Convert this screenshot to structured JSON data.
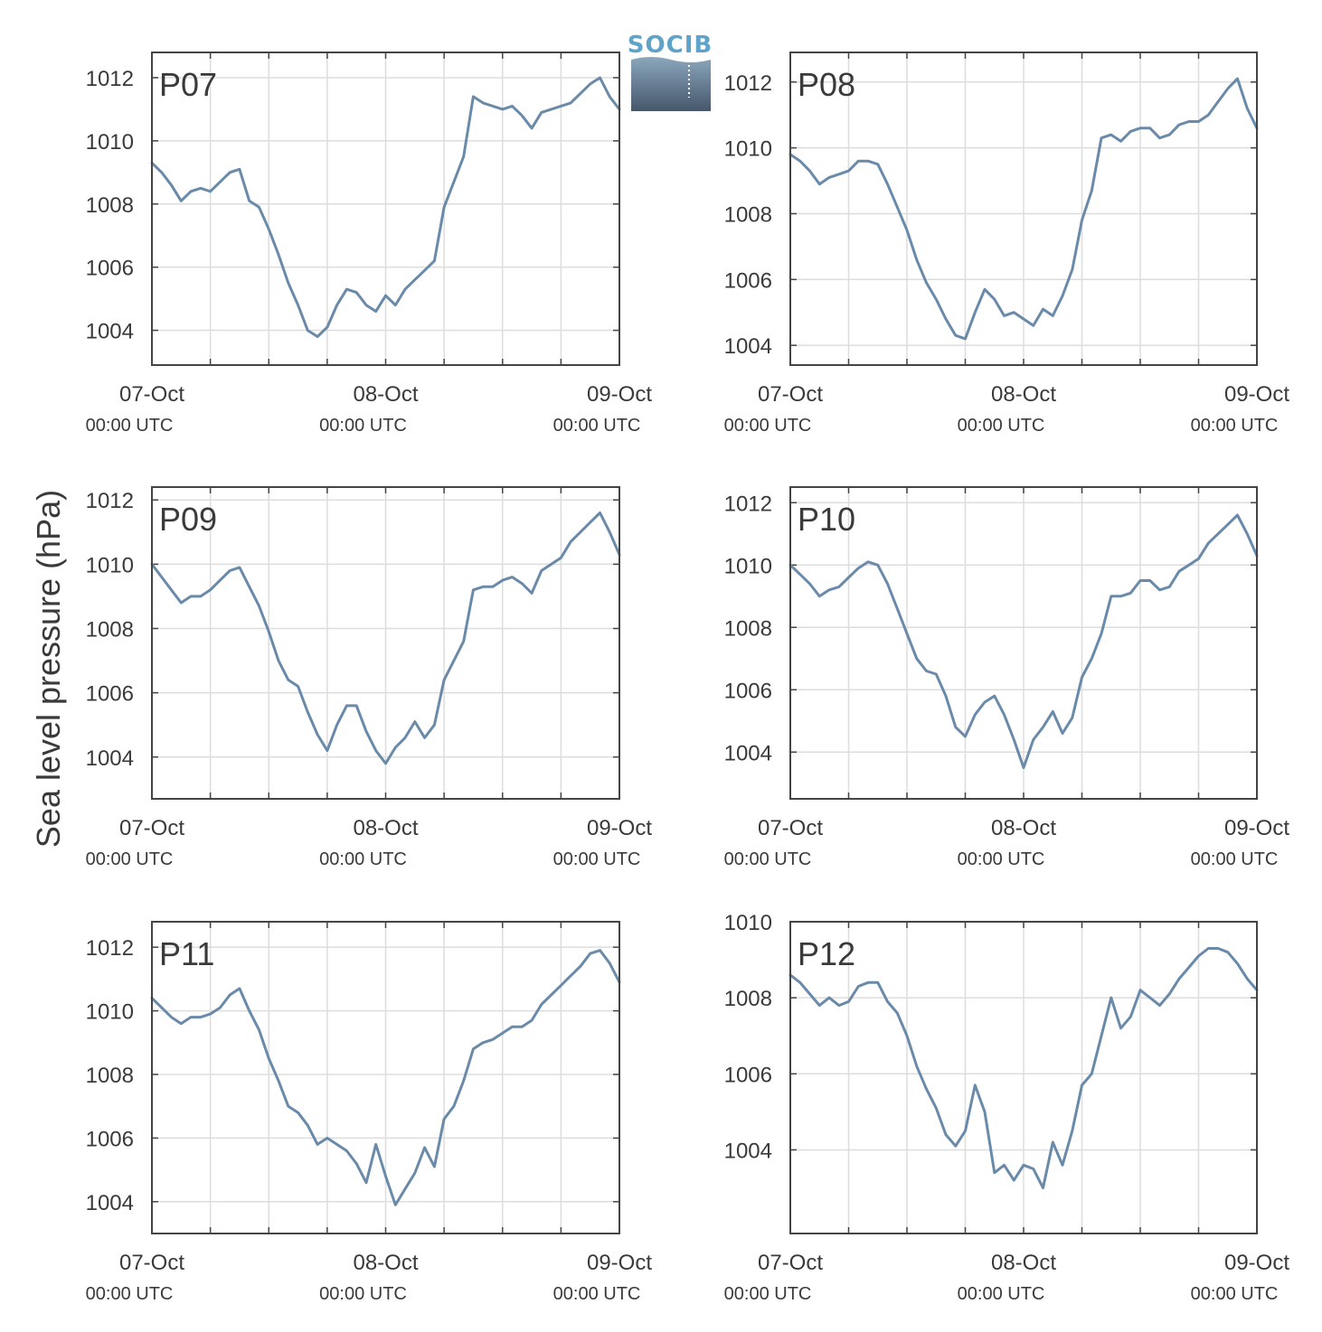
{
  "logo": {
    "text": "SOCIB",
    "colors": {
      "text": "#5fa3c9",
      "gradient_top": "#8ba7bc",
      "gradient_bottom": "#46566b"
    }
  },
  "colors": {
    "line": "#6a8aaa",
    "panel_label": "#e8141b",
    "grid": "#dddddd",
    "axis": "#444444",
    "text": "#3a3a3a"
  },
  "chart_data": {
    "type": "line",
    "ylabel": "Sea level pressure (hPa)",
    "x_range_hours": [
      0,
      48
    ],
    "x_ticks": [
      {
        "hour": 0,
        "date": "07-Oct",
        "time": "00:00 UTC"
      },
      {
        "hour": 24,
        "date": "08-Oct",
        "time": "00:00 UTC"
      },
      {
        "hour": 48,
        "date": "09-Oct",
        "time": "00:00 UTC"
      }
    ],
    "x_minor_tick_interval_hours": 6,
    "grid": true,
    "panels": [
      {
        "name": "P07",
        "ylim": [
          1002.9,
          1012.8
        ],
        "yticks": [
          1004,
          1006,
          1008,
          1010,
          1012
        ],
        "x": [
          0,
          1,
          2,
          3,
          4,
          5,
          6,
          7,
          8,
          9,
          10,
          11,
          12,
          13,
          14,
          15,
          16,
          17,
          18,
          19,
          20,
          21,
          22,
          23,
          24,
          25,
          26,
          27,
          28,
          29,
          30,
          31,
          32,
          33,
          34,
          35,
          36,
          37,
          38,
          39,
          40,
          41,
          42,
          43,
          44,
          45,
          46,
          47,
          48
        ],
        "y": [
          1009.3,
          1009.0,
          1008.6,
          1008.1,
          1008.4,
          1008.5,
          1008.4,
          1008.7,
          1009.0,
          1009.1,
          1008.1,
          1007.9,
          1007.2,
          1006.4,
          1005.5,
          1004.8,
          1004.0,
          1003.8,
          1004.1,
          1004.8,
          1005.3,
          1005.2,
          1004.8,
          1004.6,
          1005.1,
          1004.8,
          1005.3,
          1005.6,
          1005.9,
          1006.2,
          1007.9,
          1008.7,
          1009.5,
          1011.4,
          1011.2,
          1011.1,
          1011.0,
          1011.1,
          1010.8,
          1010.4,
          1010.9,
          1011.0,
          1011.1,
          1011.2,
          1011.5,
          1011.8,
          1012.0,
          1011.4,
          1011.0
        ]
      },
      {
        "name": "P08",
        "ylim": [
          1003.4,
          1012.9
        ],
        "yticks": [
          1004,
          1006,
          1008,
          1010,
          1012
        ],
        "x": [
          0,
          1,
          2,
          3,
          4,
          5,
          6,
          7,
          8,
          9,
          10,
          11,
          12,
          13,
          14,
          15,
          16,
          17,
          18,
          19,
          20,
          21,
          22,
          23,
          24,
          25,
          26,
          27,
          28,
          29,
          30,
          31,
          32,
          33,
          34,
          35,
          36,
          37,
          38,
          39,
          40,
          41,
          42,
          43,
          44,
          45,
          46,
          47,
          48
        ],
        "y": [
          1009.8,
          1009.6,
          1009.3,
          1008.9,
          1009.1,
          1009.2,
          1009.3,
          1009.6,
          1009.6,
          1009.5,
          1008.9,
          1008.2,
          1007.5,
          1006.6,
          1005.9,
          1005.4,
          1004.8,
          1004.3,
          1004.2,
          1005.0,
          1005.7,
          1005.4,
          1004.9,
          1005.0,
          1004.8,
          1004.6,
          1005.1,
          1004.9,
          1005.5,
          1006.3,
          1007.8,
          1008.7,
          1010.3,
          1010.4,
          1010.2,
          1010.5,
          1010.6,
          1010.6,
          1010.3,
          1010.4,
          1010.7,
          1010.8,
          1010.8,
          1011.0,
          1011.4,
          1011.8,
          1012.1,
          1011.2,
          1010.6
        ]
      },
      {
        "name": "P09",
        "ylim": [
          1002.7,
          1012.4
        ],
        "yticks": [
          1004,
          1006,
          1008,
          1010,
          1012
        ],
        "x": [
          0,
          1,
          2,
          3,
          4,
          5,
          6,
          7,
          8,
          9,
          10,
          11,
          12,
          13,
          14,
          15,
          16,
          17,
          18,
          19,
          20,
          21,
          22,
          23,
          24,
          25,
          26,
          27,
          28,
          29,
          30,
          31,
          32,
          33,
          34,
          35,
          36,
          37,
          38,
          39,
          40,
          41,
          42,
          43,
          44,
          45,
          46,
          47,
          48
        ],
        "y": [
          1010.0,
          1009.6,
          1009.2,
          1008.8,
          1009.0,
          1009.0,
          1009.2,
          1009.5,
          1009.8,
          1009.9,
          1009.3,
          1008.7,
          1007.9,
          1007.0,
          1006.4,
          1006.2,
          1005.4,
          1004.7,
          1004.2,
          1005.0,
          1005.6,
          1005.6,
          1004.8,
          1004.2,
          1003.8,
          1004.3,
          1004.6,
          1005.1,
          1004.6,
          1005.0,
          1006.4,
          1007.0,
          1007.6,
          1009.2,
          1009.3,
          1009.3,
          1009.5,
          1009.6,
          1009.4,
          1009.1,
          1009.8,
          1010.0,
          1010.2,
          1010.7,
          1011.0,
          1011.3,
          1011.6,
          1011.0,
          1010.3
        ]
      },
      {
        "name": "P10",
        "ylim": [
          1002.5,
          1012.5
        ],
        "yticks": [
          1004,
          1006,
          1008,
          1010,
          1012
        ],
        "x": [
          0,
          1,
          2,
          3,
          4,
          5,
          6,
          7,
          8,
          9,
          10,
          11,
          12,
          13,
          14,
          15,
          16,
          17,
          18,
          19,
          20,
          21,
          22,
          23,
          24,
          25,
          26,
          27,
          28,
          29,
          30,
          31,
          32,
          33,
          34,
          35,
          36,
          37,
          38,
          39,
          40,
          41,
          42,
          43,
          44,
          45,
          46,
          47,
          48
        ],
        "y": [
          1010.0,
          1009.7,
          1009.4,
          1009.0,
          1009.2,
          1009.3,
          1009.6,
          1009.9,
          1010.1,
          1010.0,
          1009.4,
          1008.6,
          1007.8,
          1007.0,
          1006.6,
          1006.5,
          1005.8,
          1004.8,
          1004.5,
          1005.2,
          1005.6,
          1005.8,
          1005.2,
          1004.4,
          1003.5,
          1004.4,
          1004.8,
          1005.3,
          1004.6,
          1005.1,
          1006.4,
          1007.0,
          1007.8,
          1009.0,
          1009.0,
          1009.1,
          1009.5,
          1009.5,
          1009.2,
          1009.3,
          1009.8,
          1010.0,
          1010.2,
          1010.7,
          1011.0,
          1011.3,
          1011.6,
          1011.0,
          1010.3
        ]
      },
      {
        "name": "P11",
        "ylim": [
          1003.0,
          1012.8
        ],
        "yticks": [
          1004,
          1006,
          1008,
          1010,
          1012
        ],
        "x": [
          0,
          1,
          2,
          3,
          4,
          5,
          6,
          7,
          8,
          9,
          10,
          11,
          12,
          13,
          14,
          15,
          16,
          17,
          18,
          19,
          20,
          21,
          22,
          23,
          24,
          25,
          26,
          27,
          28,
          29,
          30,
          31,
          32,
          33,
          34,
          35,
          36,
          37,
          38,
          39,
          40,
          41,
          42,
          43,
          44,
          45,
          46,
          47,
          48
        ],
        "y": [
          1010.4,
          1010.1,
          1009.8,
          1009.6,
          1009.8,
          1009.8,
          1009.9,
          1010.1,
          1010.5,
          1010.7,
          1010.0,
          1009.4,
          1008.5,
          1007.8,
          1007.0,
          1006.8,
          1006.4,
          1005.8,
          1006.0,
          1005.8,
          1005.6,
          1005.2,
          1004.6,
          1005.8,
          1004.8,
          1003.9,
          1004.4,
          1004.9,
          1005.7,
          1005.1,
          1006.6,
          1007.0,
          1007.8,
          1008.8,
          1009.0,
          1009.1,
          1009.3,
          1009.5,
          1009.5,
          1009.7,
          1010.2,
          1010.5,
          1010.8,
          1011.1,
          1011.4,
          1011.8,
          1011.9,
          1011.5,
          1010.9
        ]
      },
      {
        "name": "P12",
        "ylim": [
          1001.8,
          1010.0
        ],
        "yticks": [
          1004,
          1006,
          1008,
          1010
        ],
        "x": [
          0,
          1,
          2,
          3,
          4,
          5,
          6,
          7,
          8,
          9,
          10,
          11,
          12,
          13,
          14,
          15,
          16,
          17,
          18,
          19,
          20,
          21,
          22,
          23,
          24,
          25,
          26,
          27,
          28,
          29,
          30,
          31,
          32,
          33,
          34,
          35,
          36,
          37,
          38,
          39,
          40,
          41,
          42,
          43,
          44,
          45,
          46,
          47,
          48
        ],
        "y": [
          1008.6,
          1008.4,
          1008.1,
          1007.8,
          1008.0,
          1007.8,
          1007.9,
          1008.3,
          1008.4,
          1008.4,
          1007.9,
          1007.6,
          1007.0,
          1006.2,
          1005.6,
          1005.1,
          1004.4,
          1004.1,
          1004.5,
          1005.7,
          1005.0,
          1003.4,
          1003.6,
          1003.2,
          1003.6,
          1003.5,
          1003.0,
          1004.2,
          1003.6,
          1004.5,
          1005.7,
          1006.0,
          1007.0,
          1008.0,
          1007.2,
          1007.5,
          1008.2,
          1008.0,
          1007.8,
          1008.1,
          1008.5,
          1008.8,
          1009.1,
          1009.3,
          1009.3,
          1009.2,
          1008.9,
          1008.5,
          1008.2
        ]
      }
    ]
  }
}
